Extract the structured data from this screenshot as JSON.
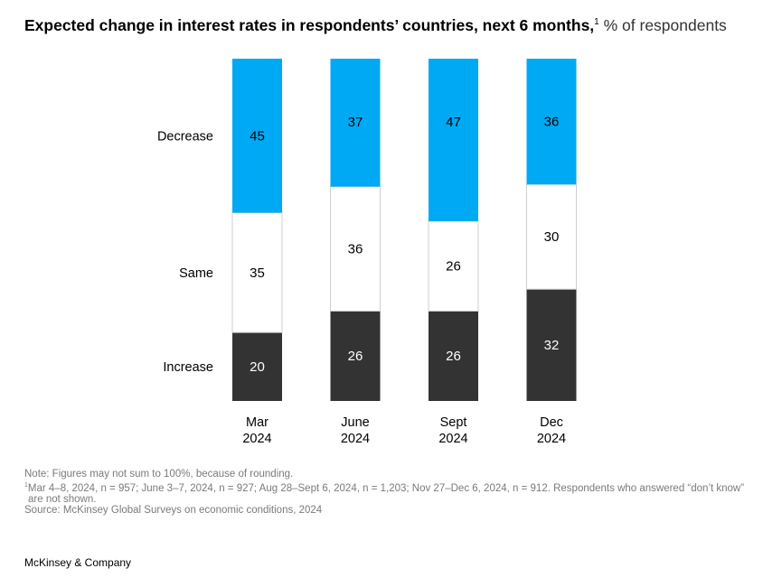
{
  "title": {
    "main": "Expected change in interest rates in respondents’ countries, next 6 months,",
    "footnote_marker": "1",
    "unit": "% of respondents"
  },
  "chart_data": {
    "type": "bar",
    "stacked": true,
    "orientation": "vertical",
    "categories": [
      [
        "Mar",
        "2024"
      ],
      [
        "June",
        "2024"
      ],
      [
        "Sept",
        "2024"
      ],
      [
        "Dec",
        "2024"
      ]
    ],
    "series": [
      {
        "name": "Increase",
        "color": "#333333",
        "label_color": "#ffffff",
        "values": [
          20,
          26,
          26,
          32
        ]
      },
      {
        "name": "Same",
        "color": "#ffffff",
        "label_color": "#000000",
        "values": [
          35,
          36,
          26,
          30
        ]
      },
      {
        "name": "Decrease",
        "color": "#00a9f4",
        "label_color": "#000000",
        "values": [
          45,
          37,
          47,
          36
        ]
      }
    ],
    "ylim": [
      0,
      100
    ],
    "grid": false,
    "legend": "left"
  },
  "notes": {
    "note": "Note: Figures may not sum to 100%, because of rounding.",
    "footnote_marker": "1",
    "footnote_line1": "Mar 4–8, 2024, n = 957; June 3–7, 2024, n = 927; Aug 28–Sept 6, 2024, n = 1,203; Nov 27–Dec 6, 2024, n = 912. Respondents who answered “don’t know”",
    "footnote_line2": "are not shown.",
    "source": "Source: McKinsey Global Surveys on economic conditions, 2024"
  },
  "brand": "McKinsey & Company"
}
